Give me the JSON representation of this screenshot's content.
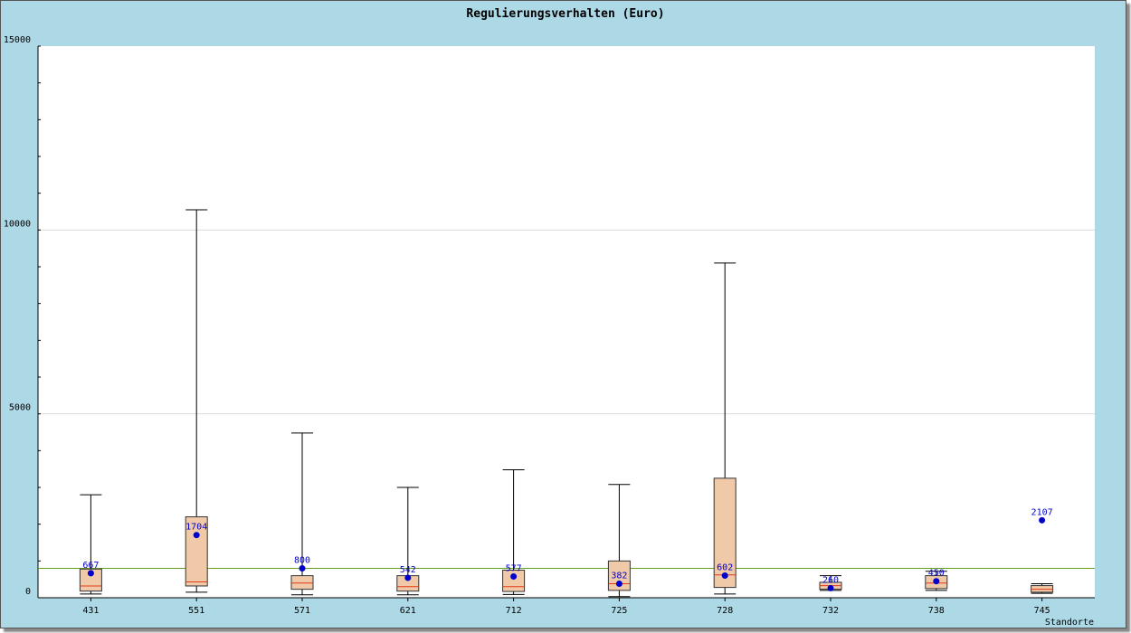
{
  "chart_data": {
    "type": "boxplot",
    "title": "Regulierungsverhalten (Euro)",
    "xlabel": "Standorte",
    "ylabel": "",
    "ylim": [
      0,
      15000
    ],
    "yticks": [
      0,
      5000,
      10000,
      15000
    ],
    "grid": true,
    "reference_line": 800,
    "categories": [
      "431",
      "551",
      "571",
      "621",
      "712",
      "725",
      "728",
      "732",
      "738",
      "745"
    ],
    "boxes": [
      {
        "min": 100,
        "q1": 180,
        "median": 320,
        "q3": 780,
        "max": 2800,
        "mean": 667,
        "mean_label": "667"
      },
      {
        "min": 150,
        "q1": 320,
        "median": 430,
        "q3": 2200,
        "max": 10550,
        "mean": 1704,
        "mean_label": "1704"
      },
      {
        "min": 80,
        "q1": 230,
        "median": 400,
        "q3": 600,
        "max": 4480,
        "mean": 800,
        "mean_label": "800"
      },
      {
        "min": 80,
        "q1": 180,
        "median": 300,
        "q3": 600,
        "max": 3000,
        "mean": 542,
        "mean_label": "542"
      },
      {
        "min": 90,
        "q1": 170,
        "median": 300,
        "q3": 750,
        "max": 3480,
        "mean": 577,
        "mean_label": "577"
      },
      {
        "min": 30,
        "q1": 200,
        "median": 380,
        "q3": 1000,
        "max": 3080,
        "mean": 382,
        "mean_label": "382"
      },
      {
        "min": 100,
        "q1": 280,
        "median": 620,
        "q3": 3250,
        "max": 9100,
        "mean": 602,
        "mean_label": "602"
      },
      {
        "min": 200,
        "q1": 230,
        "median": 330,
        "q3": 420,
        "max": 600,
        "mean": 260,
        "mean_label": "260"
      },
      {
        "min": 200,
        "q1": 250,
        "median": 400,
        "q3": 600,
        "max": 720,
        "mean": 450,
        "mean_label": "450"
      },
      {
        "min": 120,
        "q1": 150,
        "median": 230,
        "q3": 330,
        "max": 380,
        "mean": 2107,
        "mean_label": "2107"
      }
    ]
  },
  "colors": {
    "background": "#add8e6",
    "plot_area": "#ffffff",
    "box_fill": "#f0c9a8",
    "box_stroke": "#333333",
    "median": "#e03a1a",
    "mean_marker": "#0000cc",
    "reference_line": "#66a020",
    "grid": "#d8d8d8"
  }
}
